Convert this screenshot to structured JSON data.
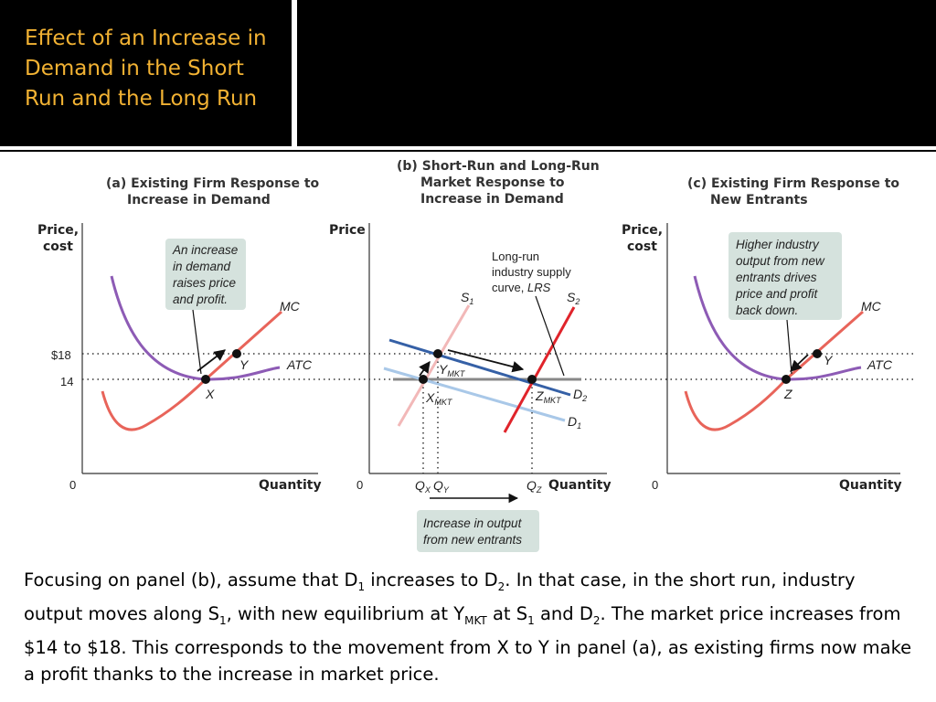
{
  "slide": {
    "title": "Effect of an Increase in Demand in the Short Run and the Long Run"
  },
  "panel_a": {
    "title_line1": "(a) Existing Firm Response to",
    "title_line2": "Increase in Demand",
    "y_axis_line1": "Price,",
    "y_axis_line2": "cost",
    "x_axis": "Quantity",
    "origin": "0",
    "price_high": "$18",
    "price_low": "14",
    "mc_label": "MC",
    "atc_label": "ATC",
    "point_x": "X",
    "point_y": "Y",
    "note": [
      "An increase",
      "in demand",
      "raises price",
      "and profit."
    ]
  },
  "panel_b": {
    "title_line1": "(b) Short-Run and Long-Run",
    "title_line2": "Market Response to",
    "title_line3": "Increase in Demand",
    "y_axis": "Price",
    "x_axis": "Quantity",
    "origin": "0",
    "lrs_note": [
      "Long-run",
      "industry supply",
      "curve, "
    ],
    "lrs_label": "LRS",
    "s1": "S",
    "s1_sub": "1",
    "s2": "S",
    "s2_sub": "2",
    "d1": "D",
    "d1_sub": "1",
    "d2": "D",
    "d2_sub": "2",
    "y_mkt": "Y",
    "x_mkt": "X",
    "z_mkt": "Z",
    "mkt_sub": "MKT",
    "qx": "Q",
    "qx_sub": "X",
    "qy": "Q",
    "qy_sub": "Y",
    "qz": "Q",
    "qz_sub": "Z",
    "bottom_note": [
      "Increase in output",
      "from new entrants"
    ]
  },
  "panel_c": {
    "title_line1": "(c) Existing Firm Response to",
    "title_line2": "New Entrants",
    "y_axis_line1": "Price,",
    "y_axis_line2": "cost",
    "x_axis": "Quantity",
    "origin": "0",
    "mc_label": "MC",
    "atc_label": "ATC",
    "point_y": "Y",
    "point_z": "Z",
    "note": [
      "Higher industry",
      "output from new",
      "entrants drives",
      "price and profit",
      "back down."
    ]
  },
  "caption": {
    "p1": "Focusing on panel (b), assume that D",
    "sub1": "1",
    "p2": " increases to D",
    "sub2": "2",
    "p3": ".  In that case, in the short run, industry output moves along S",
    "sub3": "1",
    "p4": ", with new equilibrium at Y",
    "sub4": "MKT",
    "p5": " at S",
    "sub5": "1",
    "p6": " and D",
    "sub6": "2",
    "p7": ".  The market price increases from $14 to $18.  This corresponds to the movement from X to Y in panel (a), as existing firms now make a profit thanks to the increase in market price."
  },
  "colors": {
    "title": "#f2b233",
    "mc": "#e8645a",
    "atc": "#8d5bb5",
    "demand_d2": "#3560a6",
    "demand_d1": "#a9c8e8",
    "supply_s1": "#f2b8b8",
    "supply_s2": "#e0242b",
    "lrs": "#888888",
    "note_bg": "#d5e2dd"
  }
}
